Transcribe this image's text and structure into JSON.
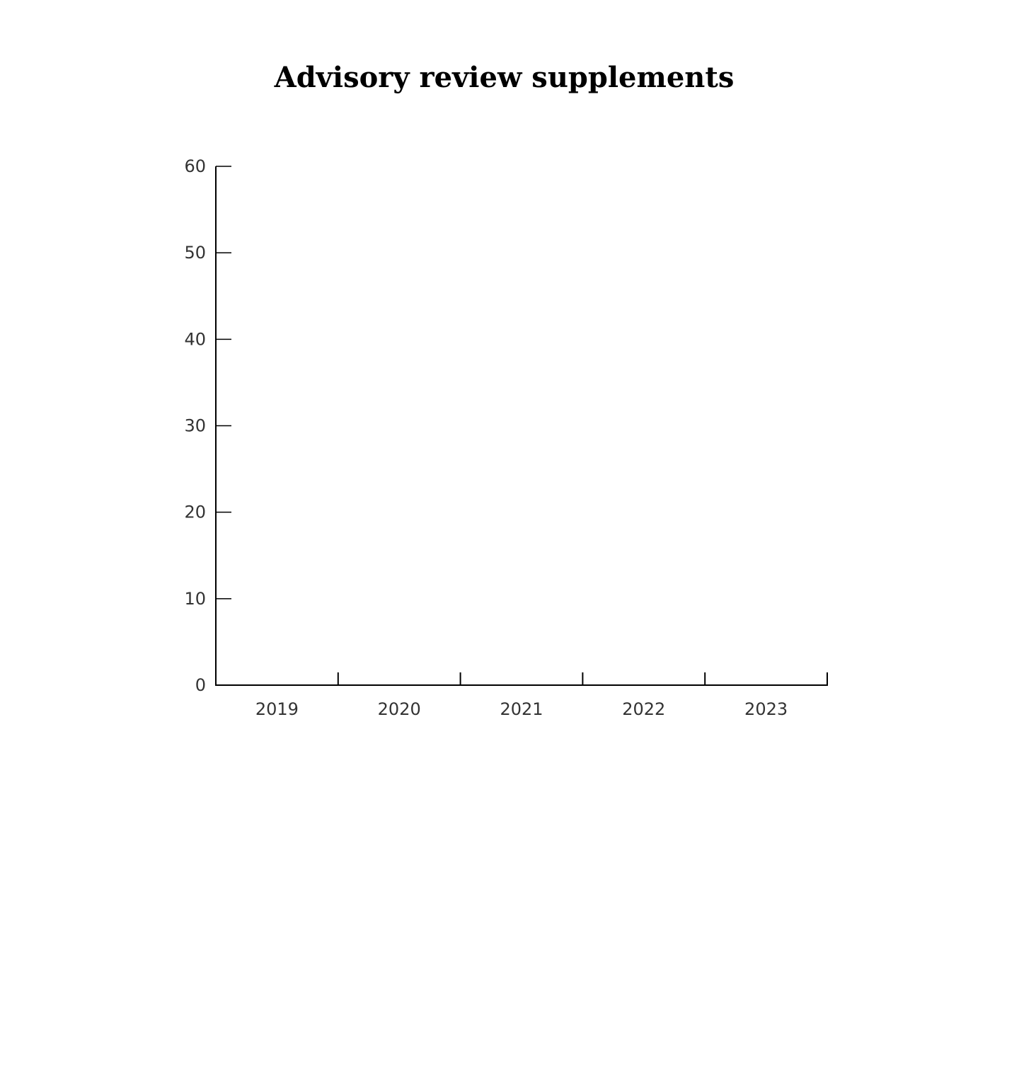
{
  "chart_data": {
    "type": "bar",
    "title": "Advisory review supplements",
    "xlabel": "",
    "ylabel": "",
    "categories": [
      "2019",
      "2020",
      "2021",
      "2022",
      "2023"
    ],
    "values": [
      null,
      null,
      null,
      null,
      null
    ],
    "ylim": [
      0,
      60
    ],
    "yticks": [
      "0",
      "10",
      "20",
      "30",
      "40",
      "50",
      "60"
    ],
    "grid": false,
    "axis_color": "#000000",
    "tick_label_color": "#333333"
  }
}
